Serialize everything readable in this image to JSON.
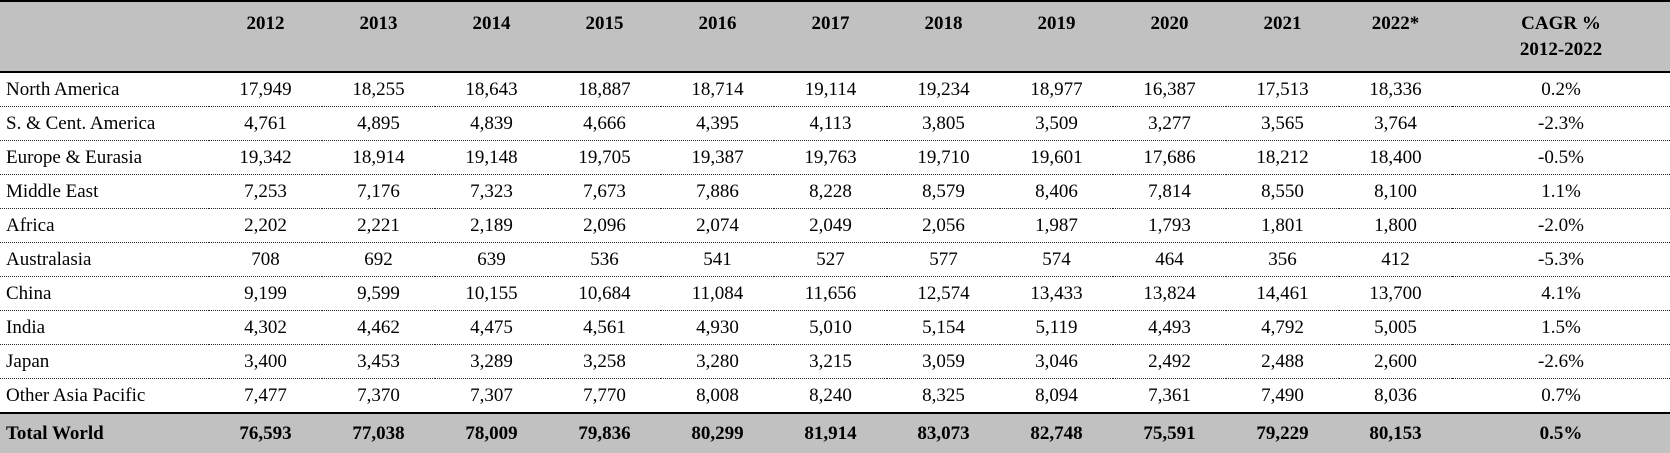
{
  "colors": {
    "header_bg": "#c1c1c1",
    "total_row_bg": "#c1c1c1",
    "border": "#000000",
    "body_bg": "#ffffff"
  },
  "chart_data": {
    "type": "table",
    "title": "",
    "header": {
      "row_label_column": "",
      "year_columns": [
        "2012",
        "2013",
        "2014",
        "2015",
        "2016",
        "2017",
        "2018",
        "2019",
        "2020",
        "2021",
        "2022*"
      ],
      "cagr_column_line1": "CAGR %",
      "cagr_column_line2": "2012-2022"
    },
    "rows": [
      {
        "label": "North America",
        "values": [
          "17,949",
          "18,255",
          "18,643",
          "18,887",
          "18,714",
          "19,114",
          "19,234",
          "18,977",
          "16,387",
          "17,513",
          "18,336"
        ],
        "cagr": "0.2%"
      },
      {
        "label": "S. & Cent. America",
        "values": [
          "4,761",
          "4,895",
          "4,839",
          "4,666",
          "4,395",
          "4,113",
          "3,805",
          "3,509",
          "3,277",
          "3,565",
          "3,764"
        ],
        "cagr": "-2.3%"
      },
      {
        "label": "Europe & Eurasia",
        "values": [
          "19,342",
          "18,914",
          "19,148",
          "19,705",
          "19,387",
          "19,763",
          "19,710",
          "19,601",
          "17,686",
          "18,212",
          "18,400"
        ],
        "cagr": "-0.5%"
      },
      {
        "label": "Middle East",
        "values": [
          "7,253",
          "7,176",
          "7,323",
          "7,673",
          "7,886",
          "8,228",
          "8,579",
          "8,406",
          "7,814",
          "8,550",
          "8,100"
        ],
        "cagr": "1.1%"
      },
      {
        "label": "Africa",
        "values": [
          "2,202",
          "2,221",
          "2,189",
          "2,096",
          "2,074",
          "2,049",
          "2,056",
          "1,987",
          "1,793",
          "1,801",
          "1,800"
        ],
        "cagr": "-2.0%"
      },
      {
        "label": "Australasia",
        "values": [
          "708",
          "692",
          "639",
          "536",
          "541",
          "527",
          "577",
          "574",
          "464",
          "356",
          "412"
        ],
        "cagr": "-5.3%"
      },
      {
        "label": "China",
        "values": [
          "9,199",
          "9,599",
          "10,155",
          "10,684",
          "11,084",
          "11,656",
          "12,574",
          "13,433",
          "13,824",
          "14,461",
          "13,700"
        ],
        "cagr": "4.1%"
      },
      {
        "label": "India",
        "values": [
          "4,302",
          "4,462",
          "4,475",
          "4,561",
          "4,930",
          "5,010",
          "5,154",
          "5,119",
          "4,493",
          "4,792",
          "5,005"
        ],
        "cagr": "1.5%"
      },
      {
        "label": "Japan",
        "values": [
          "3,400",
          "3,453",
          "3,289",
          "3,258",
          "3,280",
          "3,215",
          "3,059",
          "3,046",
          "2,492",
          "2,488",
          "2,600"
        ],
        "cagr": "-2.6%"
      },
      {
        "label": "Other Asia Pacific",
        "values": [
          "7,477",
          "7,370",
          "7,307",
          "7,770",
          "8,008",
          "8,240",
          "8,325",
          "8,094",
          "7,361",
          "7,490",
          "8,036"
        ],
        "cagr": "0.7%"
      }
    ],
    "total_row": {
      "label": "Total World",
      "values": [
        "76,593",
        "77,038",
        "78,009",
        "79,836",
        "80,299",
        "81,914",
        "83,073",
        "82,748",
        "75,591",
        "79,229",
        "80,153"
      ],
      "cagr": "0.5%"
    }
  }
}
